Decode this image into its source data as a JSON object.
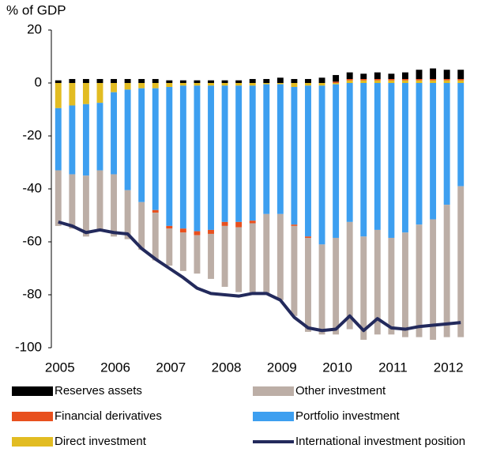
{
  "chart_data": {
    "type": "stacked-bar-line",
    "y_axis_label": "% of GDP",
    "categories": [
      "2005",
      null,
      null,
      null,
      "2006",
      null,
      null,
      null,
      "2007",
      null,
      null,
      null,
      "2008",
      null,
      null,
      null,
      "2009",
      null,
      null,
      null,
      "2010",
      null,
      null,
      null,
      "2011",
      null,
      null,
      null,
      "2012",
      null
    ],
    "ylim": [
      -100,
      20
    ],
    "yticks": [
      -100,
      -80,
      -60,
      -40,
      -20,
      0,
      20
    ],
    "series": [
      {
        "name": "Direct investment",
        "color": "#e2bc22",
        "kind": "bar",
        "values": [
          -9.5,
          -8.5,
          -8,
          -7.5,
          -3.5,
          -2.5,
          -2,
          -2,
          -1.5,
          -1,
          -1,
          -1,
          -1,
          -1,
          -1,
          -0.5,
          -0.5,
          -1.5,
          -1,
          -1,
          -0.5,
          1,
          1,
          1,
          1,
          1,
          1,
          1,
          1,
          1
        ]
      },
      {
        "name": "Portfolio investment",
        "color": "#3d9ff0",
        "kind": "bar",
        "values": [
          -23.5,
          -26,
          -27,
          -25.5,
          -31,
          -38,
          -43,
          -46,
          -52.5,
          -54,
          -55,
          -54.5,
          -51.5,
          -51.5,
          -51,
          -49,
          -49,
          -52,
          -57,
          -60,
          -58,
          -52.5,
          -58,
          -55.5,
          -58.5,
          -56.5,
          -53.5,
          -51.5,
          -46,
          -39
        ]
      },
      {
        "name": "Financial derivatives",
        "color": "#e8501e",
        "kind": "bar",
        "values": [
          0,
          0,
          0,
          0,
          0,
          0,
          0,
          -1,
          -1,
          -1.5,
          -1.5,
          -1.5,
          -1.5,
          -2,
          -1,
          0,
          0,
          -0.5,
          -0.5,
          0,
          0.5,
          0.5,
          0.5,
          0.5,
          0.5,
          0.5,
          0.5,
          0.5,
          0.5,
          0.5
        ]
      },
      {
        "name": "Other investment",
        "color": "#bcaea6",
        "kind": "bar",
        "values": [
          -21,
          -20.5,
          -23,
          -23,
          -23.5,
          -18.5,
          -18,
          -18,
          -14,
          -14.5,
          -14.5,
          -17,
          -23,
          -24.5,
          -27,
          -30.5,
          -32.5,
          -34,
          -35.5,
          -34,
          -36.5,
          -40.5,
          -39,
          -39.5,
          -36.5,
          -39.5,
          -42.5,
          -45.5,
          -50,
          -57
        ]
      },
      {
        "name": "Reserves assets",
        "color": "#000000",
        "kind": "bar",
        "values": [
          1,
          1.5,
          1.5,
          1.5,
          1.5,
          1.5,
          1.5,
          1.5,
          1,
          1,
          1,
          1,
          1,
          1,
          1.5,
          1.5,
          2,
          1.5,
          1.5,
          2,
          2.5,
          2.5,
          2,
          2.5,
          2,
          2.5,
          3.5,
          4,
          3.5,
          3.5
        ]
      },
      {
        "name": "International investment position",
        "color": "#232a5c",
        "kind": "line",
        "values": [
          -52.5,
          -54,
          -56.5,
          -55.5,
          -56.5,
          -57,
          -62.5,
          -66.5,
          -70,
          -73.5,
          -77.5,
          -79.5,
          -80,
          -80.5,
          -79.5,
          -79.5,
          -82,
          -88.5,
          -92.5,
          -93.5,
          -93,
          -88,
          -93.5,
          -89,
          -92.5,
          -93,
          -92,
          -91.5,
          -91,
          -90.5
        ]
      }
    ],
    "legend_order": [
      4,
      3,
      2,
      1,
      0,
      5
    ]
  }
}
